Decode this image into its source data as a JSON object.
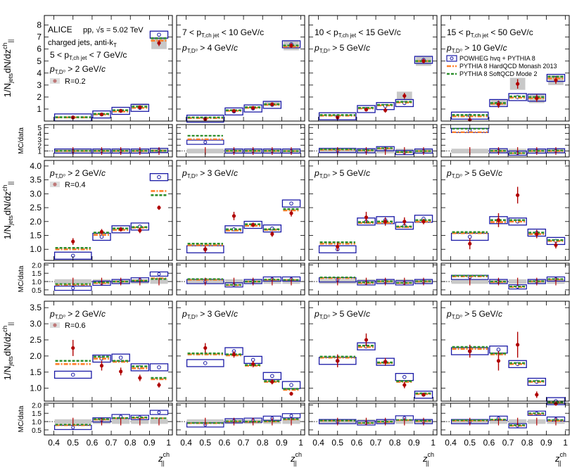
{
  "chart_data": {
    "type": "scatter",
    "experiment": "ALICE",
    "system": "pp, √s = 5.02 TeV",
    "jet_info": "charged jets, anti-k",
    "jet_info_sub": "T",
    "xlabel": "z",
    "xlabel_sup": "ch",
    "xlabel_sub": "||",
    "ylabel_main": "1/N",
    "ylabel_main_sub": "jets",
    "ylabel_main_rest": "dN/dz",
    "ylabel_main_sup": "ch",
    "ylabel_main_sub2": "||",
    "ylabel_ratio": "MC/data",
    "xlim": [
      0.35,
      1.02
    ],
    "xticks": [
      "0.4",
      "0.5",
      "0.6",
      "0.7",
      "0.8",
      "0.9",
      "1"
    ],
    "legend": [
      {
        "label": "POWHEG hvq + PYTHIA 8",
        "color": "#1a1aa6",
        "style": "box"
      },
      {
        "label": "PYTHIA 8 HardQCD Monash 2013",
        "color": "#ff7f2a",
        "style": "dashdot"
      },
      {
        "label": "PYTHIA 8 SoftQCD Mode 2",
        "color": "#2d8f2d",
        "style": "dashed"
      }
    ],
    "colors": {
      "data": "#b00000",
      "syst": "#c8c8c8",
      "powheg": "#1a1aa6",
      "monash": "#ff7f2a",
      "mode2": "#2d8f2d"
    },
    "columns": [
      {
        "jet_range": "5 < p",
        "jet_sub": "T,ch jet",
        "jet_rest": " < 7 GeV/c"
      },
      {
        "jet_range": "7 < p",
        "jet_sub": "T,ch jet",
        "jet_rest": " < 10 GeV/c"
      },
      {
        "jet_range": "10 < p",
        "jet_sub": "T,ch jet",
        "jet_rest": " < 15 GeV/c"
      },
      {
        "jet_range": "15 < p",
        "jet_sub": "T,ch jet",
        "jet_rest": " < 50 GeV/c"
      }
    ],
    "rows": [
      {
        "radius_label": "R=0.2",
        "ylim": [
          0,
          8.8
        ],
        "yticks": [
          1,
          2,
          3,
          4,
          5,
          6,
          7,
          8
        ],
        "ratio_ylim": [
          0,
          5.5
        ],
        "ratio_yticks": [
          1,
          2,
          3,
          4,
          5
        ]
      },
      {
        "radius_label": "R=0.4",
        "ylim": [
          0.6,
          4.2
        ],
        "yticks": [
          1.0,
          1.5,
          2.0,
          2.5,
          3.0,
          3.5,
          4.0
        ],
        "ratio_ylim": [
          0.2,
          2.1
        ],
        "ratio_yticks": [
          0.5,
          1.0,
          1.5,
          2.0
        ]
      },
      {
        "radius_label": "R=0.6",
        "ylim": [
          0.6,
          3.7
        ],
        "yticks": [
          1.0,
          1.5,
          2.0,
          2.5,
          3.0,
          3.5
        ],
        "ratio_ylim": [
          0.2,
          2.1
        ],
        "ratio_yticks": [
          0.5,
          1.0,
          1.5,
          2.0
        ]
      }
    ],
    "panels": [
      {
        "row": 0,
        "col": 0,
        "ptD": "2",
        "bins": [
          0.4,
          0.6,
          0.7,
          0.8,
          0.9,
          1.0
        ],
        "data": [
          0.3,
          0.55,
          0.85,
          1.15,
          6.5
        ],
        "stat": [
          0.05,
          0.08,
          0.12,
          0.12,
          0.25
        ],
        "syst": [
          0.12,
          0.15,
          0.25,
          0.3,
          0.5
        ],
        "powheg": [
          0.3,
          0.55,
          0.85,
          1.1,
          7.2
        ],
        "monash": [
          0.3,
          0.55,
          0.8,
          1.1,
          6.7
        ],
        "mode2": [
          0.32,
          0.6,
          0.9,
          1.2,
          6.9
        ],
        "ratio_powheg": [
          1.0,
          1.0,
          1.0,
          1.0,
          1.1
        ],
        "ratio_monash": [
          1.0,
          1.0,
          1.0,
          1.0,
          1.05
        ],
        "ratio_mode2": [
          1.05,
          1.05,
          1.05,
          1.05,
          1.05
        ]
      },
      {
        "row": 0,
        "col": 1,
        "ptD": "4",
        "bins": [
          0.4,
          0.6,
          0.7,
          0.8,
          0.9,
          1.0
        ],
        "data": [
          0.15,
          0.85,
          1.1,
          1.4,
          6.3
        ],
        "stat": [
          0.05,
          0.1,
          0.1,
          0.12,
          0.2
        ],
        "syst": [
          0.1,
          0.2,
          0.2,
          0.2,
          0.4
        ],
        "powheg": [
          0.2,
          0.8,
          1.05,
          1.35,
          6.4
        ],
        "monash": [
          0.25,
          0.85,
          1.1,
          1.35,
          6.2
        ],
        "mode2": [
          0.3,
          0.9,
          1.15,
          1.4,
          6.3
        ],
        "ratio_powheg": [
          2.5,
          1.0,
          1.0,
          1.0,
          1.0
        ],
        "ratio_monash": [
          3.0,
          1.0,
          1.0,
          1.0,
          1.0
        ],
        "ratio_mode2": [
          3.6,
          1.05,
          1.05,
          1.05,
          1.0
        ]
      },
      {
        "row": 0,
        "col": 2,
        "ptD": "5",
        "bins": [
          0.4,
          0.6,
          0.7,
          0.8,
          0.9,
          1.0
        ],
        "data": [
          0.3,
          0.95,
          0.9,
          2.1,
          5.0
        ],
        "stat": [
          0.1,
          0.15,
          0.2,
          0.25,
          0.2
        ],
        "syst": [
          0.2,
          0.25,
          0.3,
          0.35,
          0.4
        ],
        "powheg": [
          0.4,
          1.0,
          1.25,
          1.5,
          5.1
        ],
        "monash": [
          0.45,
          1.05,
          1.3,
          1.55,
          5.0
        ],
        "mode2": [
          0.5,
          1.1,
          1.35,
          1.6,
          5.0
        ],
        "ratio_powheg": [
          1.1,
          1.05,
          1.4,
          0.75,
          1.0
        ],
        "ratio_monash": [
          1.2,
          1.1,
          1.45,
          0.8,
          1.0
        ],
        "ratio_mode2": [
          1.3,
          1.15,
          1.5,
          0.85,
          1.0
        ]
      },
      {
        "row": 0,
        "col": 3,
        "ptD": "10",
        "bins": [
          0.4,
          0.6,
          0.7,
          0.8,
          0.9,
          1.0
        ],
        "data": [
          0.1,
          1.4,
          3.1,
          1.9,
          3.4
        ],
        "stat": [
          0.1,
          0.3,
          0.4,
          0.3,
          0.3
        ],
        "syst": [
          0.15,
          0.4,
          0.5,
          0.4,
          0.4
        ],
        "powheg": [
          0.45,
          1.5,
          2.0,
          1.95,
          3.6
        ],
        "monash": [
          0.4,
          1.45,
          1.95,
          1.9,
          3.55
        ],
        "mode2": [
          0.5,
          1.5,
          2.05,
          2.0,
          3.7
        ],
        "ratio_powheg": [
          4.5,
          1.05,
          0.65,
          1.0,
          1.05
        ],
        "ratio_monash": [
          4.2,
          1.0,
          0.62,
          1.0,
          1.0
        ],
        "ratio_mode2": [
          4.8,
          1.05,
          0.66,
          1.05,
          1.1
        ]
      },
      {
        "row": 1,
        "col": 0,
        "ptD": "2",
        "bins": [
          0.4,
          0.6,
          0.7,
          0.8,
          0.9,
          1.0
        ],
        "data": [
          1.28,
          1.63,
          1.72,
          1.68,
          2.5
        ],
        "stat": [
          0.12,
          0.1,
          0.08,
          0.1,
          0.08
        ],
        "syst": [
          0.2,
          0.15,
          0.1,
          0.15,
          0.12
        ],
        "powheg": [
          0.77,
          1.45,
          1.72,
          1.82,
          3.6
        ],
        "monash": [
          1.0,
          1.52,
          1.7,
          1.78,
          3.1
        ],
        "mode2": [
          1.05,
          1.6,
          1.75,
          1.8,
          2.95
        ],
        "ratio_powheg": [
          0.6,
          0.9,
          1.0,
          1.1,
          1.45
        ],
        "ratio_monash": [
          0.8,
          0.9,
          1.0,
          1.05,
          1.2
        ],
        "ratio_mode2": [
          0.85,
          0.95,
          1.0,
          1.05,
          1.15
        ]
      },
      {
        "row": 1,
        "col": 1,
        "ptD": "3",
        "bins": [
          0.4,
          0.6,
          0.7,
          0.8,
          0.9,
          1.0
        ],
        "data": [
          1.0,
          2.2,
          1.88,
          1.55,
          2.3
        ],
        "stat": [
          0.12,
          0.15,
          0.08,
          0.1,
          0.12
        ],
        "syst": [
          0.2,
          0.2,
          0.12,
          0.15,
          0.18
        ],
        "powheg": [
          1.0,
          1.72,
          1.88,
          1.75,
          2.65
        ],
        "monash": [
          1.15,
          1.68,
          1.85,
          1.7,
          2.4
        ],
        "mode2": [
          1.2,
          1.72,
          1.9,
          1.72,
          2.45
        ],
        "ratio_powheg": [
          1.0,
          0.8,
          1.0,
          1.15,
          1.15
        ],
        "ratio_monash": [
          1.1,
          0.78,
          1.0,
          1.1,
          1.1
        ],
        "ratio_mode2": [
          1.15,
          0.8,
          1.0,
          1.12,
          1.1
        ]
      },
      {
        "row": 1,
        "col": 2,
        "ptD": "5",
        "bins": [
          0.4,
          0.6,
          0.7,
          0.8,
          0.9,
          1.0
        ],
        "data": [
          1.1,
          2.15,
          2.0,
          2.0,
          2.0
        ],
        "stat": [
          0.15,
          0.2,
          0.15,
          0.15,
          0.1
        ],
        "syst": [
          0.22,
          0.25,
          0.2,
          0.2,
          0.15
        ],
        "powheg": [
          1.0,
          2.0,
          2.05,
          1.85,
          2.1
        ],
        "monash": [
          1.2,
          1.95,
          1.95,
          1.8,
          2.0
        ],
        "mode2": [
          1.25,
          1.98,
          2.0,
          1.82,
          2.05
        ],
        "ratio_powheg": [
          1.1,
          0.92,
          1.0,
          0.92,
          1.0
        ],
        "ratio_monash": [
          1.2,
          0.9,
          1.0,
          0.9,
          1.0
        ],
        "ratio_mode2": [
          1.25,
          0.95,
          1.02,
          0.92,
          1.02
        ]
      },
      {
        "row": 1,
        "col": 3,
        "ptD": "5",
        "bins": [
          0.4,
          0.6,
          0.7,
          0.8,
          0.9,
          1.0
        ],
        "data": [
          1.2,
          2.05,
          2.95,
          1.55,
          1.15
        ],
        "stat": [
          0.2,
          0.25,
          0.3,
          0.15,
          0.12
        ],
        "syst": [
          0.3,
          0.25,
          0.35,
          0.2,
          0.15
        ],
        "powheg": [
          1.45,
          2.05,
          2.0,
          1.6,
          1.3
        ],
        "monash": [
          1.58,
          1.98,
          2.0,
          1.55,
          1.3
        ],
        "mode2": [
          1.62,
          2.05,
          2.05,
          1.6,
          1.33
        ],
        "ratio_powheg": [
          1.25,
          1.0,
          0.68,
          1.0,
          1.15
        ],
        "ratio_monash": [
          1.3,
          0.97,
          0.67,
          1.0,
          1.12
        ],
        "ratio_mode2": [
          1.35,
          1.0,
          0.7,
          1.02,
          1.15
        ]
      },
      {
        "row": 2,
        "col": 0,
        "ptD": "2",
        "bins": [
          0.4,
          0.6,
          0.7,
          0.8,
          0.9,
          1.0
        ],
        "data": [
          2.25,
          1.7,
          1.52,
          1.32,
          1.1
        ],
        "stat": [
          0.25,
          0.15,
          0.12,
          0.1,
          0.08
        ],
        "syst": [
          0.3,
          0.2,
          0.15,
          0.12,
          0.1
        ],
        "powheg": [
          1.42,
          1.92,
          1.95,
          1.65,
          1.65
        ],
        "monash": [
          1.75,
          1.92,
          1.82,
          1.62,
          1.28
        ],
        "mode2": [
          1.85,
          1.98,
          1.85,
          1.68,
          1.32
        ],
        "ratio_powheg": [
          0.65,
          1.1,
          1.3,
          1.25,
          1.55
        ],
        "ratio_monash": [
          0.78,
          1.12,
          1.2,
          1.22,
          1.2
        ],
        "ratio_mode2": [
          0.82,
          1.15,
          1.22,
          1.25,
          1.2
        ]
      },
      {
        "row": 2,
        "col": 1,
        "ptD": "3",
        "bins": [
          0.4,
          0.6,
          0.7,
          0.8,
          0.9,
          1.0
        ],
        "data": [
          2.25,
          2.05,
          1.75,
          1.2,
          0.83
        ],
        "stat": [
          0.15,
          0.1,
          0.1,
          0.08,
          0.06
        ],
        "syst": [
          0.2,
          0.15,
          0.12,
          0.1,
          0.08
        ],
        "powheg": [
          1.78,
          2.15,
          1.88,
          1.38,
          1.1
        ],
        "monash": [
          2.05,
          2.02,
          1.7,
          1.2,
          0.95
        ],
        "mode2": [
          2.08,
          2.05,
          1.72,
          1.22,
          0.98
        ],
        "ratio_powheg": [
          0.8,
          1.05,
          1.08,
          1.2,
          1.35
        ],
        "ratio_monash": [
          0.9,
          1.0,
          0.98,
          1.0,
          1.12
        ],
        "ratio_mode2": [
          0.92,
          1.02,
          1.0,
          1.02,
          1.15
        ]
      },
      {
        "row": 2,
        "col": 2,
        "ptD": "5",
        "bins": [
          0.4,
          0.6,
          0.7,
          0.8,
          0.9,
          1.0
        ],
        "data": [
          1.85,
          2.5,
          1.82,
          1.1,
          0.8
        ],
        "stat": [
          0.2,
          0.2,
          0.12,
          0.1,
          0.06
        ],
        "syst": [
          0.2,
          0.22,
          0.15,
          0.12,
          0.08
        ],
        "powheg": [
          1.85,
          2.3,
          1.82,
          1.35,
          0.8
        ],
        "monash": [
          1.95,
          2.28,
          1.78,
          1.2,
          0.82
        ],
        "mode2": [
          1.98,
          2.32,
          1.8,
          1.22,
          0.84
        ],
        "ratio_powheg": [
          1.0,
          0.92,
          1.0,
          1.22,
          1.0
        ],
        "ratio_monash": [
          1.05,
          0.9,
          0.98,
          1.08,
          1.02
        ],
        "ratio_mode2": [
          1.06,
          0.92,
          1.0,
          1.1,
          1.05
        ]
      },
      {
        "row": 2,
        "col": 3,
        "ptD": "5",
        "bins": [
          0.4,
          0.6,
          0.7,
          0.8,
          0.9,
          1.0
        ],
        "data": [
          2.15,
          1.85,
          2.35,
          0.8,
          0.52
        ],
        "stat": [
          0.2,
          0.3,
          0.4,
          0.1,
          0.06
        ],
        "syst": [
          0.4,
          0.35,
          0.45,
          0.15,
          0.08
        ],
        "powheg": [
          2.15,
          2.2,
          1.75,
          1.2,
          0.6
        ],
        "monash": [
          2.22,
          2.05,
          1.75,
          1.2,
          0.55
        ],
        "mode2": [
          2.28,
          2.08,
          1.78,
          1.22,
          0.57
        ],
        "ratio_powheg": [
          1.0,
          1.2,
          0.75,
          1.5,
          1.15
        ],
        "ratio_monash": [
          1.05,
          1.1,
          0.75,
          1.45,
          1.05
        ],
        "ratio_mode2": [
          1.08,
          1.12,
          0.78,
          1.5,
          1.1
        ]
      }
    ]
  }
}
